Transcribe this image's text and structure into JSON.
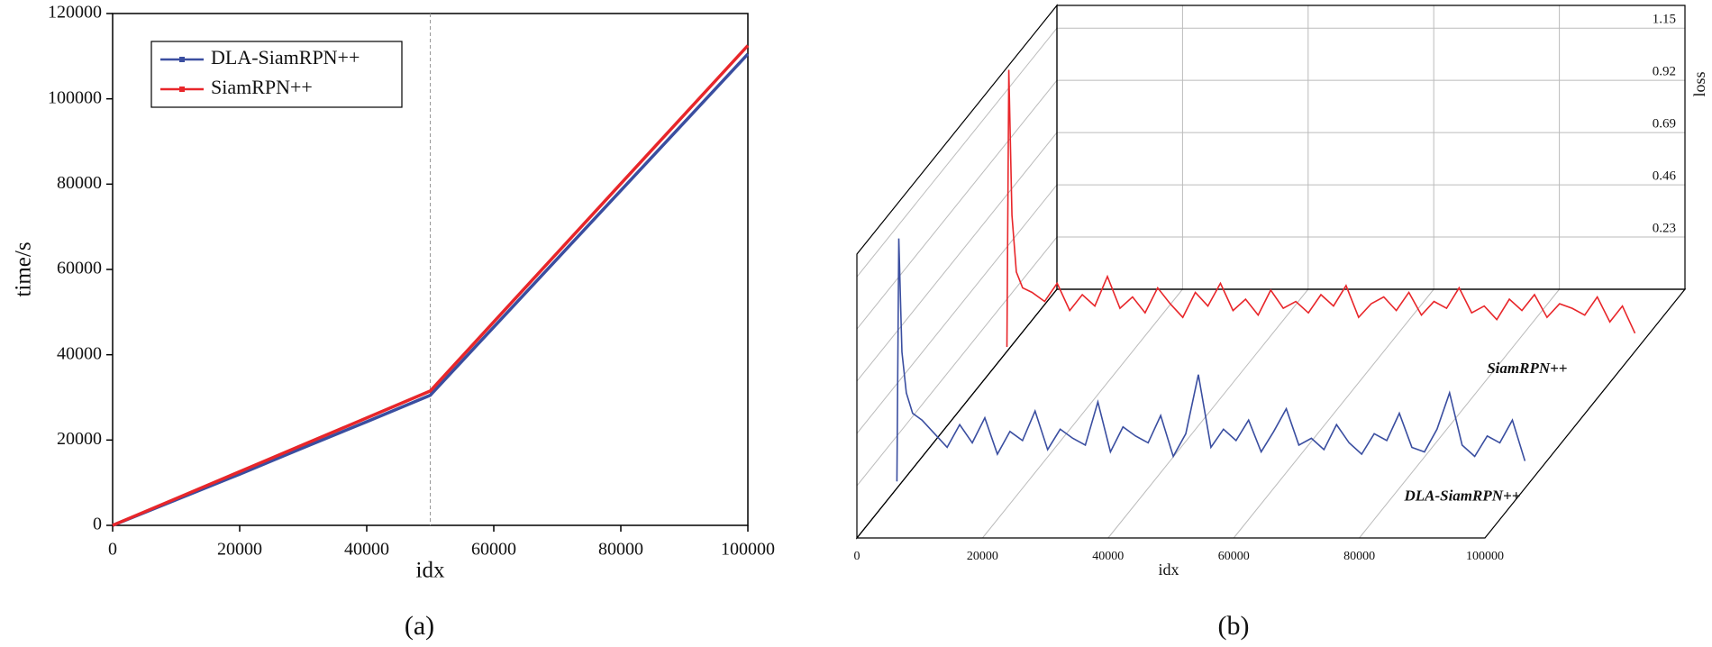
{
  "chart_data": [
    {
      "type": "line",
      "caption": "(a)",
      "xlabel": "idx",
      "ylabel": "time/s",
      "x": [
        0,
        10000,
        20000,
        30000,
        40000,
        50000,
        60000,
        70000,
        80000,
        90000,
        100000
      ],
      "series": [
        {
          "name": "DLA-SiamRPN++",
          "color": "#3a4ea0",
          "values": [
            0,
            6000,
            12000,
            18200,
            24300,
            30500,
            46500,
            62500,
            78500,
            94500,
            110500
          ]
        },
        {
          "name": "SiamRPN++",
          "color": "#e8262a",
          "values": [
            0,
            6300,
            12600,
            18900,
            25200,
            31500,
            47700,
            63900,
            80100,
            96300,
            112500
          ]
        }
      ],
      "xlim": [
        0,
        100000
      ],
      "xticks": [
        0,
        20000,
        40000,
        60000,
        80000,
        100000
      ],
      "ylim": [
        0,
        120000
      ],
      "yticks": [
        0,
        20000,
        40000,
        60000,
        80000,
        100000,
        120000
      ],
      "vlines": [
        50000
      ],
      "legend": "upper left"
    },
    {
      "type": "line3d",
      "caption": "(b)",
      "xlabel": "idx",
      "ylabel": "loss",
      "x": [
        0,
        300,
        800,
        1500,
        2500,
        4000,
        6000,
        8000,
        10000,
        12000,
        14000,
        16000,
        18000,
        20000,
        22000,
        24000,
        26000,
        28000,
        30000,
        32000,
        34000,
        36000,
        38000,
        40000,
        42000,
        44000,
        46000,
        48000,
        50000,
        52000,
        54000,
        56000,
        58000,
        60000,
        62000,
        64000,
        66000,
        68000,
        70000,
        72000,
        74000,
        76000,
        78000,
        80000,
        82000,
        84000,
        86000,
        88000,
        90000,
        92000,
        94000,
        96000,
        98000,
        100000
      ],
      "series": [
        {
          "name": "DLA-SiamRPN++",
          "color": "#3a4ea0",
          "values": [
            0.03,
            1.1,
            0.6,
            0.42,
            0.33,
            0.3,
            0.24,
            0.18,
            0.28,
            0.2,
            0.31,
            0.15,
            0.25,
            0.21,
            0.34,
            0.17,
            0.26,
            0.22,
            0.19,
            0.38,
            0.16,
            0.27,
            0.23,
            0.2,
            0.32,
            0.14,
            0.24,
            0.5,
            0.18,
            0.26,
            0.21,
            0.3,
            0.16,
            0.25,
            0.35,
            0.19,
            0.22,
            0.17,
            0.28,
            0.2,
            0.15,
            0.24,
            0.21,
            0.33,
            0.18,
            0.16,
            0.26,
            0.42,
            0.19,
            0.14,
            0.23,
            0.2,
            0.3,
            0.12
          ]
        },
        {
          "name": "SiamRPN++",
          "color": "#e8262a",
          "values": [
            0.02,
            1.24,
            0.6,
            0.35,
            0.28,
            0.26,
            0.22,
            0.3,
            0.18,
            0.25,
            0.2,
            0.33,
            0.19,
            0.24,
            0.17,
            0.28,
            0.21,
            0.15,
            0.26,
            0.2,
            0.3,
            0.18,
            0.23,
            0.16,
            0.27,
            0.19,
            0.22,
            0.17,
            0.25,
            0.2,
            0.29,
            0.15,
            0.21,
            0.24,
            0.18,
            0.26,
            0.16,
            0.22,
            0.19,
            0.28,
            0.17,
            0.2,
            0.14,
            0.23,
            0.18,
            0.25,
            0.15,
            0.21,
            0.19,
            0.16,
            0.24,
            0.13,
            0.2,
            0.08
          ]
        }
      ],
      "xlim": [
        0,
        100000
      ],
      "xticks": [
        0,
        20000,
        40000,
        60000,
        80000,
        100000
      ],
      "ylim": [
        0,
        1.25
      ],
      "yticks": [
        0.23,
        0.46,
        0.69,
        0.92,
        1.15
      ]
    }
  ]
}
